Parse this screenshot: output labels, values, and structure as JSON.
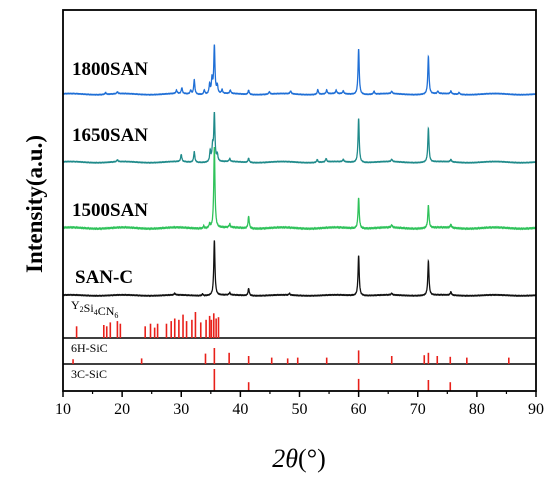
{
  "chart_data": {
    "type": "line",
    "title": "",
    "xlabel": "2θ(°)",
    "xlabel_parts": {
      "symbol": "2θ",
      "unit": "(°)"
    },
    "ylabel": "Intensity(a.u.)",
    "xlim": [
      10,
      90
    ],
    "x_ticks": [
      "10",
      "20",
      "30",
      "40",
      "50",
      "60",
      "70",
      "80",
      "90"
    ],
    "y_ticks_shown": false,
    "grid": false,
    "colors": {
      "1800SAN": "#1f6fd6",
      "1650SAN": "#1f8a8a",
      "1500SAN": "#2fc25a",
      "SAN-C": "#111111",
      "reference": "#e8201a"
    },
    "series": [
      {
        "name": "1800SAN",
        "baseline": 0.03,
        "peaks": [
          {
            "x": 17.2,
            "y": 0.04
          },
          {
            "x": 19.2,
            "y": 0.04
          },
          {
            "x": 29.2,
            "y": 0.07
          },
          {
            "x": 30.1,
            "y": 0.12
          },
          {
            "x": 31.6,
            "y": 0.08
          },
          {
            "x": 32.2,
            "y": 0.3
          },
          {
            "x": 33.9,
            "y": 0.09
          },
          {
            "x": 34.8,
            "y": 0.2
          },
          {
            "x": 35.2,
            "y": 0.3
          },
          {
            "x": 35.6,
            "y": 1.0
          },
          {
            "x": 36.1,
            "y": 0.16
          },
          {
            "x": 36.9,
            "y": 0.08
          },
          {
            "x": 38.3,
            "y": 0.07
          },
          {
            "x": 41.4,
            "y": 0.09
          },
          {
            "x": 44.9,
            "y": 0.05
          },
          {
            "x": 48.5,
            "y": 0.06
          },
          {
            "x": 53.1,
            "y": 0.1
          },
          {
            "x": 54.6,
            "y": 0.08
          },
          {
            "x": 56.2,
            "y": 0.07
          },
          {
            "x": 57.4,
            "y": 0.06
          },
          {
            "x": 60.0,
            "y": 0.95
          },
          {
            "x": 62.6,
            "y": 0.06
          },
          {
            "x": 65.6,
            "y": 0.05
          },
          {
            "x": 71.8,
            "y": 0.78
          },
          {
            "x": 73.4,
            "y": 0.05
          },
          {
            "x": 75.6,
            "y": 0.06
          },
          {
            "x": 77.0,
            "y": 0.04
          }
        ]
      },
      {
        "name": "1650SAN",
        "baseline": 0.03,
        "peaks": [
          {
            "x": 19.2,
            "y": 0.04
          },
          {
            "x": 30.0,
            "y": 0.15
          },
          {
            "x": 32.2,
            "y": 0.22
          },
          {
            "x": 34.9,
            "y": 0.22
          },
          {
            "x": 35.3,
            "y": 0.3
          },
          {
            "x": 35.6,
            "y": 1.0
          },
          {
            "x": 36.1,
            "y": 0.14
          },
          {
            "x": 38.2,
            "y": 0.06
          },
          {
            "x": 41.4,
            "y": 0.09
          },
          {
            "x": 53.0,
            "y": 0.06
          },
          {
            "x": 54.5,
            "y": 0.07
          },
          {
            "x": 57.4,
            "y": 0.05
          },
          {
            "x": 60.0,
            "y": 0.92
          },
          {
            "x": 65.6,
            "y": 0.05
          },
          {
            "x": 71.8,
            "y": 0.7
          },
          {
            "x": 75.6,
            "y": 0.05
          }
        ]
      },
      {
        "name": "1500SAN",
        "baseline": 0.02,
        "peaks": [
          {
            "x": 33.8,
            "y": 0.03
          },
          {
            "x": 34.8,
            "y": 0.05
          },
          {
            "x": 35.6,
            "y": 1.0
          },
          {
            "x": 38.2,
            "y": 0.04
          },
          {
            "x": 41.4,
            "y": 0.15
          },
          {
            "x": 60.0,
            "y": 0.38
          },
          {
            "x": 65.6,
            "y": 0.03
          },
          {
            "x": 71.8,
            "y": 0.28
          },
          {
            "x": 75.6,
            "y": 0.04
          }
        ]
      },
      {
        "name": "SAN-C",
        "baseline": 0.02,
        "peaks": [
          {
            "x": 28.9,
            "y": 0.03
          },
          {
            "x": 33.6,
            "y": 0.03
          },
          {
            "x": 35.6,
            "y": 1.0
          },
          {
            "x": 38.2,
            "y": 0.04
          },
          {
            "x": 41.4,
            "y": 0.13
          },
          {
            "x": 48.3,
            "y": 0.03
          },
          {
            "x": 60.0,
            "y": 0.73
          },
          {
            "x": 65.6,
            "y": 0.03
          },
          {
            "x": 71.8,
            "y": 0.62
          },
          {
            "x": 75.6,
            "y": 0.06
          }
        ]
      }
    ],
    "references": [
      {
        "name": "Y2Si4CN6",
        "label_parts": [
          {
            "t": "Y",
            "sub": false
          },
          {
            "t": "2",
            "sub": true
          },
          {
            "t": "Si",
            "sub": false
          },
          {
            "t": "4",
            "sub": true
          },
          {
            "t": "CN",
            "sub": false
          },
          {
            "t": "6",
            "sub": true
          }
        ],
        "lines": [
          {
            "x": 12.3,
            "y": 0.45
          },
          {
            "x": 16.9,
            "y": 0.5
          },
          {
            "x": 17.4,
            "y": 0.45
          },
          {
            "x": 18.0,
            "y": 0.6
          },
          {
            "x": 19.2,
            "y": 0.65
          },
          {
            "x": 19.7,
            "y": 0.55
          },
          {
            "x": 23.9,
            "y": 0.45
          },
          {
            "x": 24.8,
            "y": 0.55
          },
          {
            "x": 25.5,
            "y": 0.4
          },
          {
            "x": 26.0,
            "y": 0.55
          },
          {
            "x": 27.5,
            "y": 0.55
          },
          {
            "x": 28.3,
            "y": 0.65
          },
          {
            "x": 28.9,
            "y": 0.75
          },
          {
            "x": 29.6,
            "y": 0.7
          },
          {
            "x": 30.3,
            "y": 0.9
          },
          {
            "x": 30.9,
            "y": 0.65
          },
          {
            "x": 31.8,
            "y": 0.7
          },
          {
            "x": 32.4,
            "y": 1.0
          },
          {
            "x": 33.3,
            "y": 0.6
          },
          {
            "x": 34.2,
            "y": 0.7
          },
          {
            "x": 34.8,
            "y": 0.85
          },
          {
            "x": 35.1,
            "y": 0.7
          },
          {
            "x": 35.5,
            "y": 0.95
          },
          {
            "x": 35.9,
            "y": 0.75
          },
          {
            "x": 36.3,
            "y": 0.8
          }
        ]
      },
      {
        "name": "6H-SiC",
        "label_parts": [
          {
            "t": "6H-SiC",
            "sub": false
          }
        ],
        "lines": [
          {
            "x": 11.7,
            "y": 0.3
          },
          {
            "x": 23.3,
            "y": 0.35
          },
          {
            "x": 34.1,
            "y": 0.65
          },
          {
            "x": 35.6,
            "y": 1.0
          },
          {
            "x": 38.1,
            "y": 0.7
          },
          {
            "x": 41.4,
            "y": 0.5
          },
          {
            "x": 45.3,
            "y": 0.4
          },
          {
            "x": 48.0,
            "y": 0.35
          },
          {
            "x": 49.7,
            "y": 0.4
          },
          {
            "x": 54.6,
            "y": 0.4
          },
          {
            "x": 60.0,
            "y": 0.85
          },
          {
            "x": 65.6,
            "y": 0.5
          },
          {
            "x": 71.1,
            "y": 0.55
          },
          {
            "x": 71.8,
            "y": 0.7
          },
          {
            "x": 73.3,
            "y": 0.5
          },
          {
            "x": 75.5,
            "y": 0.45
          },
          {
            "x": 78.3,
            "y": 0.4
          },
          {
            "x": 85.4,
            "y": 0.4
          }
        ]
      },
      {
        "name": "3C-SiC",
        "label_parts": [
          {
            "t": "3C-SiC",
            "sub": false
          }
        ],
        "lines": [
          {
            "x": 35.6,
            "y": 1.0
          },
          {
            "x": 41.4,
            "y": 0.4
          },
          {
            "x": 60.0,
            "y": 0.55
          },
          {
            "x": 71.8,
            "y": 0.5
          },
          {
            "x": 75.5,
            "y": 0.4
          }
        ]
      }
    ]
  }
}
